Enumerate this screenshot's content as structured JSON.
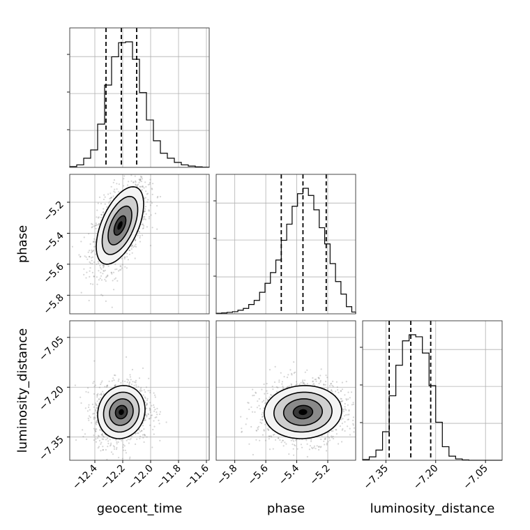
{
  "chart_data": {
    "type": "corner",
    "parameters": [
      "geocent_time",
      "phase",
      "luminosity_distance"
    ],
    "axes": {
      "geocent_time": {
        "label": "geocent_time",
        "range": [
          -12.58,
          -11.58
        ],
        "ticks": [
          -12.4,
          -12.2,
          -12.0,
          -11.8,
          -11.6
        ],
        "tick_labels": [
          "−12.4",
          "−12.2",
          "−12.0",
          "−11.8",
          "−11.6"
        ]
      },
      "phase": {
        "label": "phase",
        "range": [
          -5.92,
          -5.02
        ],
        "ticks": [
          -5.8,
          -5.6,
          -5.4,
          -5.2
        ],
        "tick_labels": [
          "−5.8",
          "−5.6",
          "−5.4",
          "−5.2"
        ]
      },
      "luminosity_distance": {
        "label": "luminosity_distance",
        "range": [
          -7.42,
          -7.0
        ],
        "ticks": [
          -7.35,
          -7.2,
          -7.05
        ],
        "tick_labels": [
          "−7.35",
          "−7.20",
          "−7.05"
        ]
      }
    },
    "marginals": [
      {
        "parameter": "geocent_time",
        "quantiles": [
          -12.32,
          -12.21,
          -12.1
        ],
        "bins": [
          -12.58,
          -12.53,
          -12.48,
          -12.43,
          -12.38,
          -12.33,
          -12.28,
          -12.23,
          -12.18,
          -12.13,
          -12.08,
          -12.03,
          -11.98,
          -11.93,
          -11.88,
          -11.83,
          -11.78,
          -11.73,
          -11.68,
          -11.63,
          -11.58
        ],
        "counts": [
          0.5,
          1.5,
          5.5,
          10.5,
          26,
          49.5,
          66.5,
          75,
          75.5,
          65,
          45,
          28.5,
          16,
          8.5,
          5.5,
          3,
          1.5,
          0.8,
          0.3,
          0.1
        ]
      },
      {
        "parameter": "phase",
        "quantiles": [
          -5.5,
          -5.36,
          -5.21
        ],
        "bins": [
          -5.92,
          -5.885,
          -5.85,
          -5.815,
          -5.78,
          -5.745,
          -5.71,
          -5.675,
          -5.64,
          -5.605,
          -5.57,
          -5.535,
          -5.5,
          -5.465,
          -5.43,
          -5.395,
          -5.36,
          -5.325,
          -5.29,
          -5.255,
          -5.22,
          -5.185,
          -5.15,
          -5.115,
          -5.08,
          -5.045,
          -5.02
        ],
        "counts": [
          0.3,
          0.5,
          0.8,
          1.2,
          2.0,
          3.0,
          5.2,
          7.5,
          12,
          17,
          23,
          30,
          41,
          50,
          60,
          67,
          70,
          66,
          58,
          48,
          39,
          28,
          18,
          11,
          4,
          1
        ]
      },
      {
        "parameter": "luminosity_distance",
        "quantiles": [
          -7.34,
          -7.275,
          -7.215
        ],
        "bins": [
          -7.42,
          -7.4,
          -7.38,
          -7.36,
          -7.34,
          -7.32,
          -7.3,
          -7.28,
          -7.26,
          -7.24,
          -7.22,
          -7.2,
          -7.18,
          -7.16,
          -7.14,
          -7.12,
          -7.1,
          -7.08,
          -7.06,
          -7.04,
          -7.02,
          -7.0
        ],
        "counts": [
          1,
          5,
          15,
          42,
          95,
          140,
          176,
          185,
          182,
          158,
          110,
          56,
          20,
          6,
          2,
          0.5,
          0,
          0,
          0,
          0,
          0
        ]
      }
    ],
    "joint": [
      {
        "x": "geocent_time",
        "y": "phase",
        "mean": [
          -12.22,
          -5.35
        ],
        "sd": [
          0.085,
          0.125
        ],
        "rho": 0.55
      },
      {
        "x": "geocent_time",
        "y": "luminosity_distance",
        "mean": [
          -12.21,
          -7.275
        ],
        "sd": [
          0.085,
          0.04
        ],
        "rho": 0.1
      },
      {
        "x": "phase",
        "y": "luminosity_distance",
        "mean": [
          -5.36,
          -7.275
        ],
        "sd": [
          0.125,
          0.04
        ],
        "rho": 0.05
      }
    ],
    "contour_levels_sigma": [
      0.5,
      1.0,
      1.5,
      2.0
    ],
    "grid": true
  }
}
